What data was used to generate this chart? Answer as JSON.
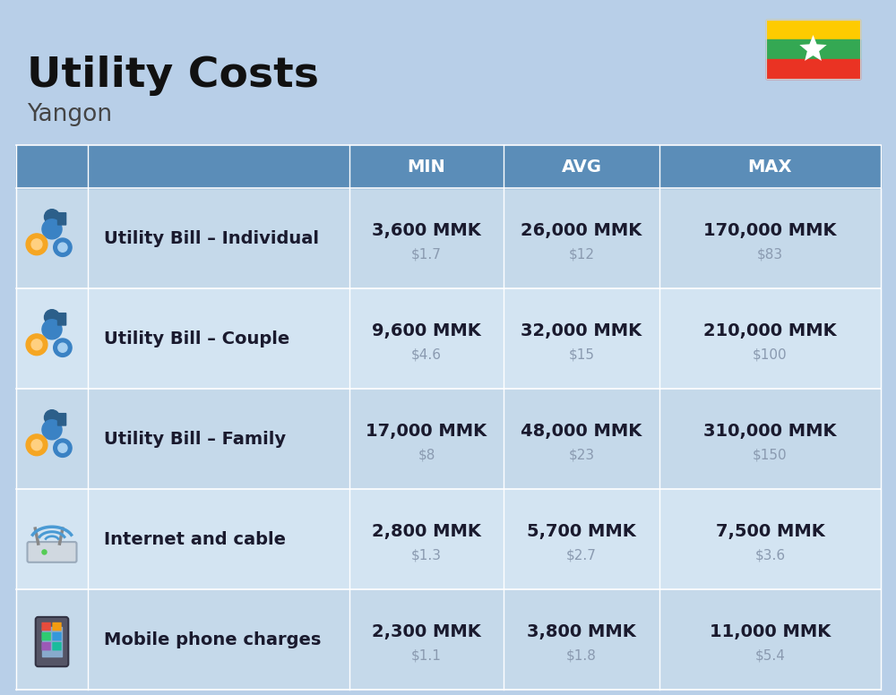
{
  "title": "Utility Costs",
  "subtitle": "Yangon",
  "bg_color": "#b8cfe8",
  "header_bg_color": "#5b8db8",
  "row_bg1": "#c5d9ea",
  "row_bg2": "#d3e4f2",
  "header_text_color": "#ffffff",
  "cell_text_color": "#1a1a2e",
  "sub_text_color": "#8a9ab0",
  "col_headers": [
    "MIN",
    "AVG",
    "MAX"
  ],
  "rows": [
    {
      "label": "Utility Bill – Individual",
      "min_mmk": "3,600 MMK",
      "min_usd": "$1.7",
      "avg_mmk": "26,000 MMK",
      "avg_usd": "$12",
      "max_mmk": "170,000 MMK",
      "max_usd": "$83",
      "icon": "utility"
    },
    {
      "label": "Utility Bill – Couple",
      "min_mmk": "9,600 MMK",
      "min_usd": "$4.6",
      "avg_mmk": "32,000 MMK",
      "avg_usd": "$15",
      "max_mmk": "210,000 MMK",
      "max_usd": "$100",
      "icon": "utility"
    },
    {
      "label": "Utility Bill – Family",
      "min_mmk": "17,000 MMK",
      "min_usd": "$8",
      "avg_mmk": "48,000 MMK",
      "avg_usd": "$23",
      "max_mmk": "310,000 MMK",
      "max_usd": "$150",
      "icon": "utility"
    },
    {
      "label": "Internet and cable",
      "min_mmk": "2,800 MMK",
      "min_usd": "$1.3",
      "avg_mmk": "5,700 MMK",
      "avg_usd": "$2.7",
      "max_mmk": "7,500 MMK",
      "max_usd": "$3.6",
      "icon": "internet"
    },
    {
      "label": "Mobile phone charges",
      "min_mmk": "2,300 MMK",
      "min_usd": "$1.1",
      "avg_mmk": "3,800 MMK",
      "avg_usd": "$1.8",
      "max_mmk": "11,000 MMK",
      "max_usd": "$5.4",
      "icon": "mobile"
    }
  ],
  "title_fontsize": 34,
  "subtitle_fontsize": 19,
  "header_fontsize": 14,
  "label_fontsize": 14,
  "value_fontsize": 14,
  "sub_value_fontsize": 11
}
